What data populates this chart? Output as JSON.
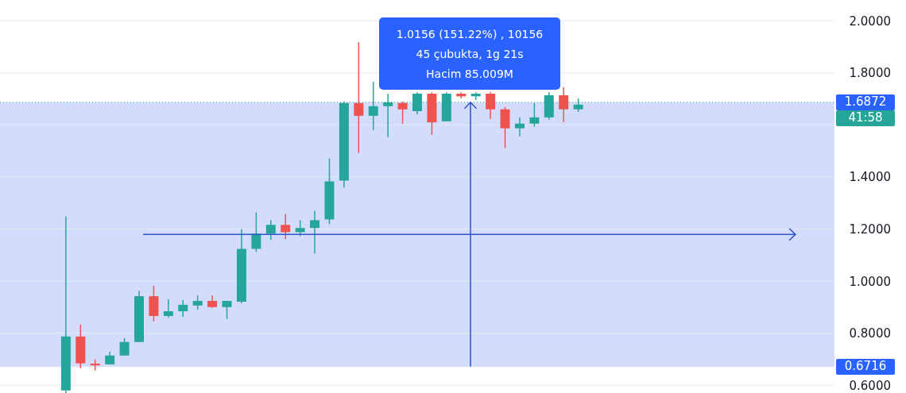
{
  "chart_data": {
    "type": "candlestick",
    "categories": [
      null,
      null,
      null,
      null,
      null,
      null,
      null,
      null,
      null,
      null,
      null,
      null,
      null,
      null,
      null,
      null,
      null,
      null,
      null,
      null,
      null,
      null,
      null,
      null,
      null,
      null,
      null,
      null,
      null,
      null,
      null,
      null,
      null,
      null,
      null,
      null,
      null,
      null,
      null,
      null,
      null,
      null,
      null,
      null,
      null,
      null,
      null,
      null,
      null,
      null,
      null,
      null,
      null,
      null,
      null,
      null,
      null
    ],
    "ohlc": [
      null,
      null,
      null,
      null,
      [
        0.58,
        1.249,
        0.57,
        0.787
      ],
      [
        0.787,
        0.833,
        0.665,
        0.684
      ],
      [
        0.683,
        0.699,
        0.656,
        0.676
      ],
      [
        0.68,
        0.729,
        0.68,
        0.714
      ],
      [
        0.714,
        0.781,
        0.714,
        0.766
      ],
      [
        0.766,
        0.963,
        0.766,
        0.942
      ],
      [
        0.942,
        0.982,
        0.845,
        0.866
      ],
      [
        0.866,
        0.93,
        0.86,
        0.884
      ],
      [
        0.884,
        0.927,
        0.863,
        0.909
      ],
      [
        0.906,
        0.945,
        0.89,
        0.924
      ],
      [
        0.924,
        0.945,
        0.897,
        0.9
      ],
      [
        0.9,
        0.924,
        0.854,
        0.924
      ],
      [
        0.921,
        1.2,
        0.915,
        1.124
      ],
      [
        1.124,
        1.264,
        1.112,
        1.182
      ],
      [
        1.182,
        1.234,
        1.158,
        1.216
      ],
      [
        1.216,
        1.258,
        1.161,
        1.188
      ],
      [
        1.188,
        1.234,
        1.173,
        1.204
      ],
      [
        1.204,
        1.27,
        1.106,
        1.234
      ],
      [
        1.237,
        1.471,
        1.219,
        1.383
      ],
      [
        1.386,
        1.69,
        1.359,
        1.684
      ],
      [
        1.684,
        1.918,
        1.492,
        1.635
      ],
      [
        1.635,
        1.766,
        1.58,
        1.672
      ],
      [
        1.672,
        1.72,
        1.553,
        1.687
      ],
      [
        1.684,
        1.69,
        1.605,
        1.66
      ],
      [
        1.653,
        1.725,
        1.641,
        1.72
      ],
      [
        1.72,
        1.725,
        1.562,
        1.61
      ],
      [
        1.614,
        1.725,
        1.614,
        1.72
      ],
      [
        1.72,
        1.725,
        1.702,
        1.71
      ],
      [
        1.71,
        1.725,
        1.696,
        1.72
      ],
      [
        1.72,
        1.725,
        1.623,
        1.66
      ],
      [
        1.66,
        1.669,
        1.511,
        1.587
      ],
      [
        1.587,
        1.629,
        1.556,
        1.605
      ],
      [
        1.605,
        1.684,
        1.593,
        1.629
      ],
      [
        1.629,
        1.726,
        1.62,
        1.714
      ],
      [
        1.714,
        1.745,
        1.611,
        1.66
      ],
      [
        1.66,
        1.702,
        1.65,
        1.678
      ],
      null,
      null,
      null,
      null,
      null,
      null,
      null,
      null,
      null,
      null,
      null,
      null,
      null,
      null,
      null,
      null,
      null
    ],
    "colors": [
      null,
      null,
      null,
      null,
      "#26a69a",
      "#ef5350",
      "#ef5350",
      "#26a69a",
      "#26a69a",
      "#26a69a",
      "#ef5350",
      "#26a69a",
      "#26a69a",
      "#26a69a",
      "#ef5350",
      "#26a69a",
      "#26a69a",
      "#26a69a",
      "#26a69a",
      "#ef5350",
      "#26a69a",
      "#26a69a",
      "#26a69a",
      "#26a69a",
      "#ef5350",
      "#26a69a",
      "#26a69a",
      "#ef5350",
      "#26a69a",
      "#ef5350",
      "#26a69a",
      "#ef5350",
      "#26a69a",
      "#ef5350",
      "#ef5350",
      "#26a69a",
      "#26a69a",
      "#26a69a",
      "#ef5350",
      "#26a69a",
      null,
      null,
      null,
      null,
      null,
      null,
      null,
      null,
      null,
      null,
      null,
      null,
      null,
      null,
      null,
      null,
      null
    ],
    "ylim": [
      0.57,
      2.08
    ],
    "yticks": [
      {
        "value": 0.6,
        "label": "0.6000"
      },
      {
        "value": 0.8,
        "label": "0.8000"
      },
      {
        "value": 1.0,
        "label": "1.0000"
      },
      {
        "value": 1.2,
        "label": "1.2000"
      },
      {
        "value": 1.4,
        "label": "1.4000"
      },
      {
        "value": 1.6,
        "label": null
      },
      {
        "value": 1.8,
        "label": "1.8000"
      },
      {
        "value": 2.0,
        "label": "2.0000"
      }
    ],
    "tick_labels": "y",
    "grid": "y",
    "bands": [
      {
        "axis": "y",
        "from": 0.6716,
        "to": 1.6872,
        "label": null,
        "color": "#d3ddfb"
      }
    ],
    "ref_lines": [
      {
        "axis": "y",
        "value": 1.6872,
        "label": "1.6872",
        "color": "#26a69a",
        "line_style": "dotted"
      },
      {
        "axis": "y",
        "value": 0.6716,
        "label": "0.6716",
        "color": "#d3ddfb",
        "line_style": "solid"
      }
    ],
    "annotations": [
      "1.0156 (151.22%) , 10156",
      "45 çubukta, 1g 21s",
      "Hacim 85.009M",
      "41:58"
    ]
  }
}
